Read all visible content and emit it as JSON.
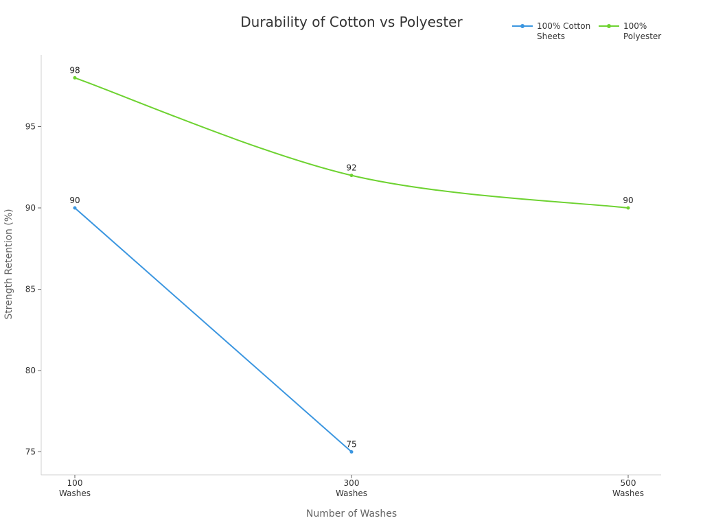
{
  "chart_data": {
    "type": "line",
    "title": "Durability of Cotton vs Polyester",
    "xlabel": "Number of Washes",
    "ylabel": "Strength Retention (%)",
    "categories": [
      "100 Washes",
      "300 Washes",
      "500 Washes"
    ],
    "x_tick_lines": [
      [
        "100",
        "Washes"
      ],
      [
        "300",
        "Washes"
      ],
      [
        "500",
        "Washes"
      ]
    ],
    "y_ticks": [
      75,
      80,
      85,
      90,
      95
    ],
    "ylim": [
      73.6,
      99.5
    ],
    "grid": false,
    "legend_position": "top-right",
    "series": [
      {
        "name": "100% Cotton Sheets",
        "legend_lines": [
          "100% Cotton",
          "Sheets"
        ],
        "color": "#3b96e0",
        "values": [
          90,
          75,
          null
        ],
        "smooth": false
      },
      {
        "name": "100% Polyester",
        "legend_lines": [
          "100%",
          "Polyester"
        ],
        "color": "#6dd230",
        "values": [
          98,
          92,
          90
        ],
        "smooth": true
      }
    ],
    "data_labels": true
  }
}
